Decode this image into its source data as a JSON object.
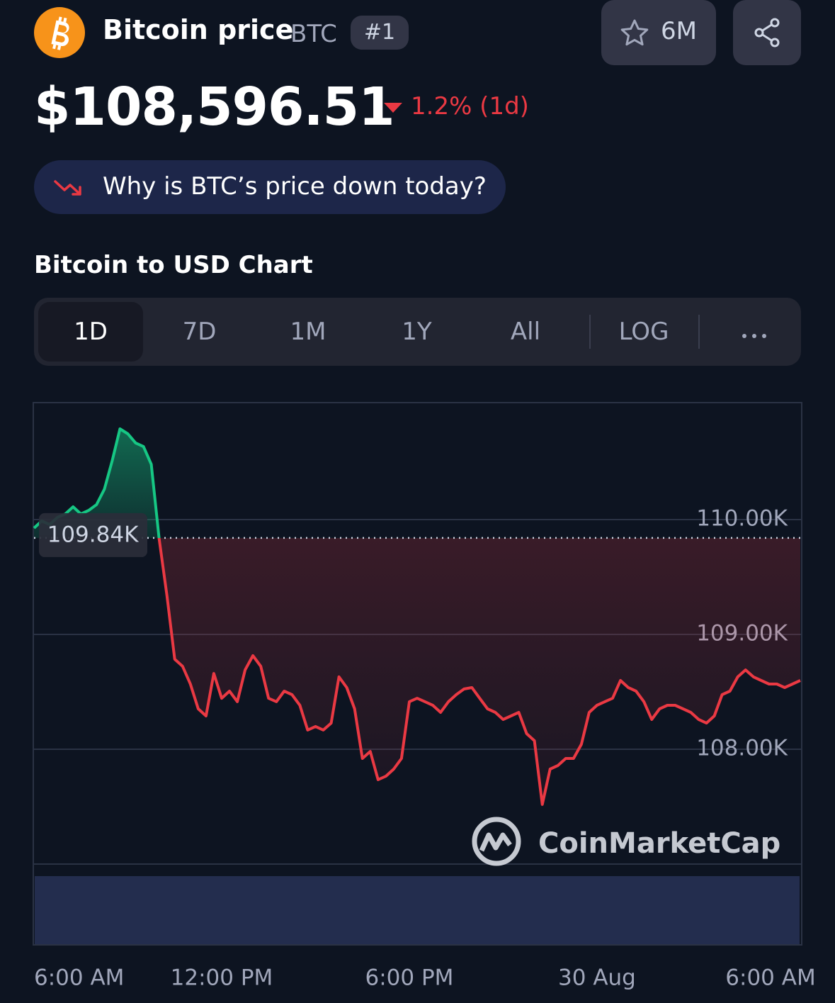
{
  "header": {
    "name": "Bitcoin price",
    "symbol": "BTC",
    "rank": "#1",
    "watchlist": "6M"
  },
  "price": {
    "value": "$108,596.51",
    "change": "1.2% (1d)"
  },
  "prompt": "Why is BTC’s price down today?",
  "chart_data": {
    "type": "line",
    "title": "Bitcoin to USD Chart",
    "ranges": [
      "1D",
      "7D",
      "1M",
      "1Y",
      "All"
    ],
    "scale_option": "LOG",
    "watermark": "CoinMarketCap",
    "up_color": "#16c784",
    "down_color": "#ea3943",
    "grid": true,
    "baseline": {
      "value": 109840,
      "label": "109.84K"
    },
    "xlim": [
      0,
      24.5
    ],
    "xticks": [
      {
        "value": 0,
        "label": "6:00 AM"
      },
      {
        "value": 6,
        "label": "12:00 PM"
      },
      {
        "value": 12,
        "label": "6:00 PM"
      },
      {
        "value": 18,
        "label": "30 Aug"
      },
      {
        "value": 24,
        "label": "6:00 AM"
      }
    ],
    "ylim": [
      107000,
      111000
    ],
    "yticks": [
      {
        "value": 108000,
        "label": "108.00K"
      },
      {
        "value": 109000,
        "label": "109.00K"
      },
      {
        "value": 110000,
        "label": "110.00K"
      }
    ],
    "x": [
      0,
      0.25,
      0.5,
      0.75,
      1,
      1.25,
      1.5,
      1.75,
      2,
      2.25,
      2.5,
      2.75,
      3,
      3.25,
      3.5,
      3.75,
      4,
      4.25,
      4.5,
      4.75,
      5,
      5.25,
      5.5,
      5.75,
      6,
      6.25,
      6.5,
      6.75,
      7,
      7.25,
      7.5,
      7.75,
      8,
      8.25,
      8.5,
      8.75,
      9,
      9.25,
      9.5,
      9.75,
      10,
      10.25,
      10.5,
      10.75,
      11,
      11.25,
      11.5,
      11.75,
      12,
      12.25,
      12.5,
      12.75,
      13,
      13.25,
      13.5,
      13.75,
      14,
      14.25,
      14.5,
      14.75,
      15,
      15.25,
      15.5,
      15.75,
      16,
      16.25,
      16.5,
      16.75,
      17,
      17.25,
      17.5,
      17.75,
      18,
      18.25,
      18.5,
      18.75,
      19,
      19.25,
      19.5,
      19.75,
      20,
      20.25,
      20.5,
      20.75,
      21,
      21.25,
      21.5,
      21.75,
      22,
      22.25,
      22.5,
      22.75,
      23,
      23.25,
      23.5,
      23.75,
      24,
      24.25,
      24.5
    ],
    "series": [
      {
        "values": [
          109926,
          109988,
          109957,
          110019,
          110049,
          110111,
          110049,
          110080,
          110130,
          110265,
          110512,
          110790,
          110747,
          110667,
          110636,
          110481,
          109833,
          109339,
          108784,
          108722,
          108568,
          108352,
          108290,
          108660,
          108444,
          108506,
          108414,
          108691,
          108815,
          108722,
          108444,
          108414,
          108506,
          108475,
          108383,
          108167,
          108198,
          108167,
          108228,
          108630,
          108537,
          108352,
          107920,
          107981,
          107735,
          107765,
          107827,
          107920,
          108414,
          108444,
          108414,
          108383,
          108321,
          108414,
          108475,
          108525,
          108537,
          108444,
          108352,
          108321,
          108259,
          108290,
          108321,
          108136,
          108074,
          107519,
          107827,
          107858,
          107920,
          107920,
          108043,
          108321,
          108383,
          108414,
          108444,
          108599,
          108537,
          108506,
          108414,
          108259,
          108352,
          108383,
          108383,
          108352,
          108321,
          108259,
          108228,
          108290,
          108475,
          108506,
          108630,
          108691,
          108630,
          108599,
          108568,
          108568,
          108537,
          108568,
          108599
        ]
      }
    ]
  }
}
